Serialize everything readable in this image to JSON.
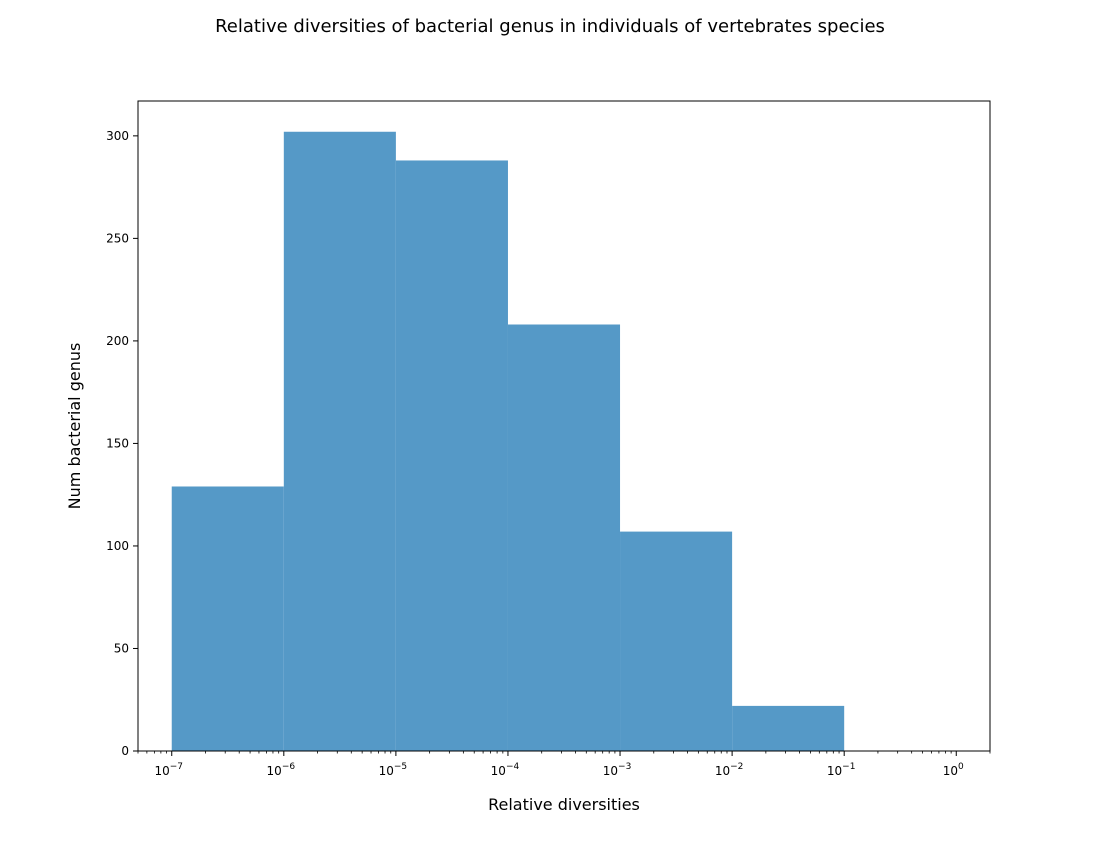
{
  "chart_data": {
    "type": "bar",
    "title": "Relative diversities of bacterial genus in individuals of vertebrates species",
    "xlabel": "Relative diversities",
    "ylabel": "Num bacterial genus",
    "x_scale": "log",
    "x_range": [
      5e-08,
      2
    ],
    "ylim": [
      0,
      317
    ],
    "bar_color": "#5599c7",
    "bins": [
      {
        "x0": 1e-07,
        "x1": 1e-06,
        "count": 129
      },
      {
        "x0": 1e-06,
        "x1": 1e-05,
        "count": 302
      },
      {
        "x0": 1e-05,
        "x1": 0.0001,
        "count": 288
      },
      {
        "x0": 0.0001,
        "x1": 0.001,
        "count": 208
      },
      {
        "x0": 0.001,
        "x1": 0.01,
        "count": 107
      },
      {
        "x0": 0.01,
        "x1": 0.1,
        "count": 22
      }
    ],
    "x_ticks": [
      {
        "value": 1e-07,
        "base": "10",
        "exp": "−7"
      },
      {
        "value": 1e-06,
        "base": "10",
        "exp": "−6"
      },
      {
        "value": 1e-05,
        "base": "10",
        "exp": "−5"
      },
      {
        "value": 0.0001,
        "base": "10",
        "exp": "−4"
      },
      {
        "value": 0.001,
        "base": "10",
        "exp": "−3"
      },
      {
        "value": 0.01,
        "base": "10",
        "exp": "−2"
      },
      {
        "value": 0.1,
        "base": "10",
        "exp": "−1"
      },
      {
        "value": 1,
        "base": "10",
        "exp": "0"
      }
    ],
    "y_ticks": [
      0,
      50,
      100,
      150,
      200,
      250,
      300
    ],
    "grid": false
  }
}
